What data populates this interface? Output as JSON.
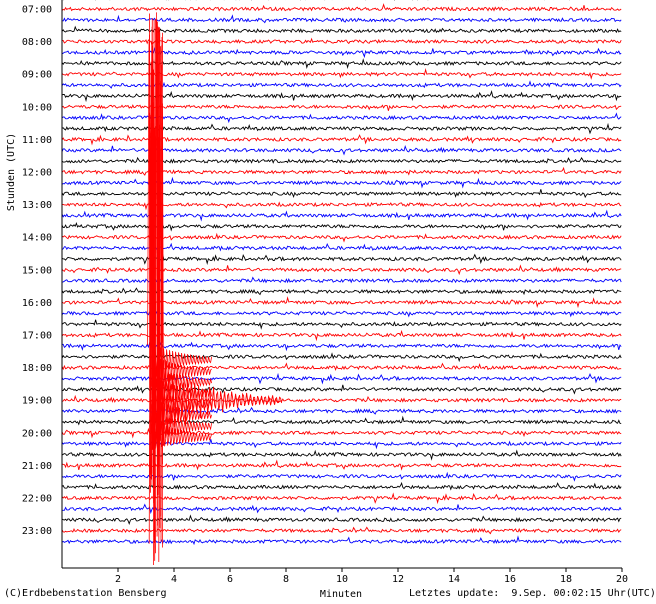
{
  "chart_data": {
    "type": "line",
    "ylabel": "Stunden (UTC)",
    "xlabel": "Minuten",
    "x_ticks": [
      2,
      4,
      6,
      8,
      10,
      12,
      14,
      16,
      18,
      20
    ],
    "xlim": [
      0,
      20
    ],
    "hour_labels": [
      "07:00",
      "08:00",
      "09:00",
      "10:00",
      "11:00",
      "12:00",
      "13:00",
      "14:00",
      "15:00",
      "16:00",
      "17:00",
      "18:00",
      "19:00",
      "20:00",
      "21:00",
      "22:00",
      "23:00"
    ],
    "lines_per_hour": 3,
    "trace_colors": [
      "#000000",
      "#ff0000",
      "#0000ff"
    ],
    "event": {
      "onset_minute": 3.2,
      "peak_hour": "19:00",
      "color": "#ff0000"
    }
  },
  "footer": {
    "copyright": "(C)Erdbebenstation Bensberg",
    "update": "Letztes update:  9.Sep. 00:02:15 Uhr(UTC)"
  }
}
